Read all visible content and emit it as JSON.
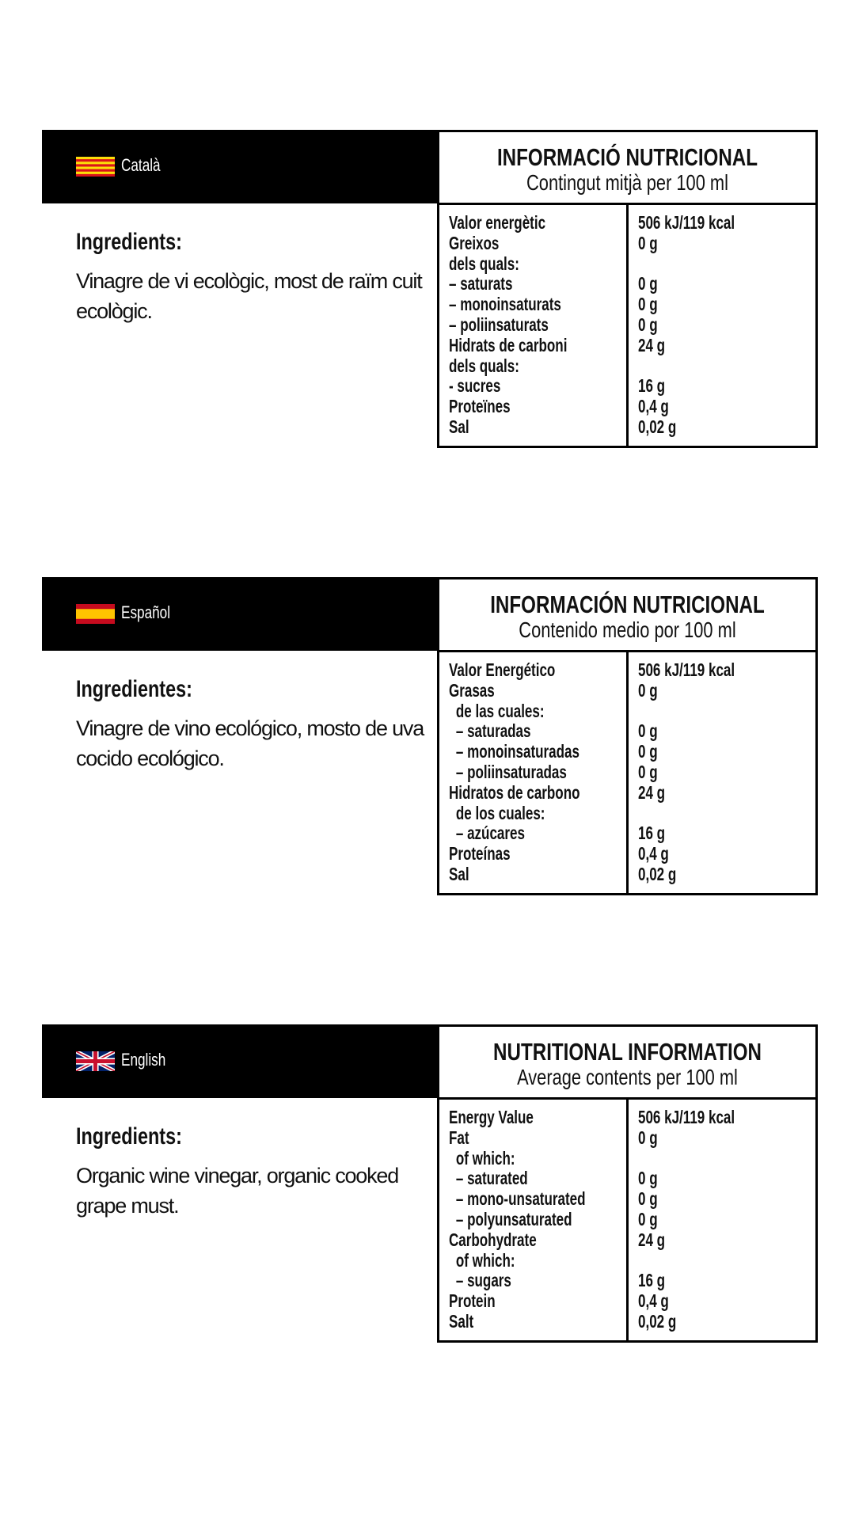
{
  "sections": [
    {
      "language": "Català",
      "flag": "catalonia-flag-icon",
      "ingredients_heading": "Ingredients:",
      "ingredients_text": "Vinagre de vi ecològic, most de raïm cuit ecològic.",
      "table_title": "INFORMACIÓ NUTRICIONAL",
      "table_subtitle": "Contingut mitjà per 100 ml",
      "rows": [
        {
          "label": "Valor energètic",
          "value": "506 kJ/119 kcal",
          "indent": false
        },
        {
          "label": "Greixos",
          "value": "0 g",
          "indent": false
        },
        {
          "label": "dels quals:",
          "value": "",
          "indent": false
        },
        {
          "label": "– saturats",
          "value": "0 g",
          "indent": false
        },
        {
          "label": "– monoinsaturats",
          "value": "0 g",
          "indent": false
        },
        {
          "label": "– poliinsaturats",
          "value": "0 g",
          "indent": false
        },
        {
          "label": "Hidrats de carboni",
          "value": "24 g",
          "indent": false
        },
        {
          "label": "dels quals:",
          "value": "",
          "indent": false
        },
        {
          "label": "- sucres",
          "value": "16 g",
          "indent": false
        },
        {
          "label": "Proteïnes",
          "value": "0,4 g",
          "indent": false
        },
        {
          "label": "Sal",
          "value": "0,02 g",
          "indent": false
        }
      ]
    },
    {
      "language": "Español",
      "flag": "spain-flag-icon",
      "ingredients_heading": "Ingredientes:",
      "ingredients_text": "Vinagre de vino ecológico, mosto de uva cocido ecológico.",
      "table_title": "INFORMACIÓN NUTRICIONAL",
      "table_subtitle": "Contenido medio por 100 ml",
      "rows": [
        {
          "label": "Valor Energético",
          "value": "506 kJ/119 kcal",
          "indent": false
        },
        {
          "label": "Grasas",
          "value": "0 g",
          "indent": false
        },
        {
          "label": "de las cuales:",
          "value": "",
          "indent": true
        },
        {
          "label": "– saturadas",
          "value": "0 g",
          "indent": true
        },
        {
          "label": "– monoinsaturadas",
          "value": "0 g",
          "indent": true
        },
        {
          "label": "– poliinsaturadas",
          "value": "0 g",
          "indent": true
        },
        {
          "label": "Hidratos de carbono",
          "value": "24 g",
          "indent": false
        },
        {
          "label": "de los cuales:",
          "value": "",
          "indent": true
        },
        {
          "label": "– azúcares",
          "value": "16 g",
          "indent": true
        },
        {
          "label": "Proteínas",
          "value": "0,4 g",
          "indent": false
        },
        {
          "label": "Sal",
          "value": "0,02 g",
          "indent": false
        }
      ]
    },
    {
      "language": "English",
      "flag": "uk-flag-icon",
      "ingredients_heading": "Ingredients:",
      "ingredients_text": "Organic wine vinegar, organic cooked grape must.",
      "table_title": "NUTRITIONAL INFORMATION",
      "table_subtitle": "Average contents per 100 ml",
      "rows": [
        {
          "label": "Energy Value",
          "value": "506 kJ/119 kcal",
          "indent": false
        },
        {
          "label": "Fat",
          "value": "0 g",
          "indent": false
        },
        {
          "label": "of which:",
          "value": "",
          "indent": true
        },
        {
          "label": "– saturated",
          "value": "0 g",
          "indent": true
        },
        {
          "label": "– mono-unsaturated",
          "value": "0 g",
          "indent": true
        },
        {
          "label": "– polyunsaturated",
          "value": "0 g",
          "indent": true
        },
        {
          "label": "Carbohydrate",
          "value": "24 g",
          "indent": false
        },
        {
          "label": "of which:",
          "value": "",
          "indent": true
        },
        {
          "label": "– sugars",
          "value": "16 g",
          "indent": true
        },
        {
          "label": "Protein",
          "value": "0,4 g",
          "indent": false
        },
        {
          "label": "Salt",
          "value": "0,02 g",
          "indent": false
        }
      ]
    }
  ]
}
